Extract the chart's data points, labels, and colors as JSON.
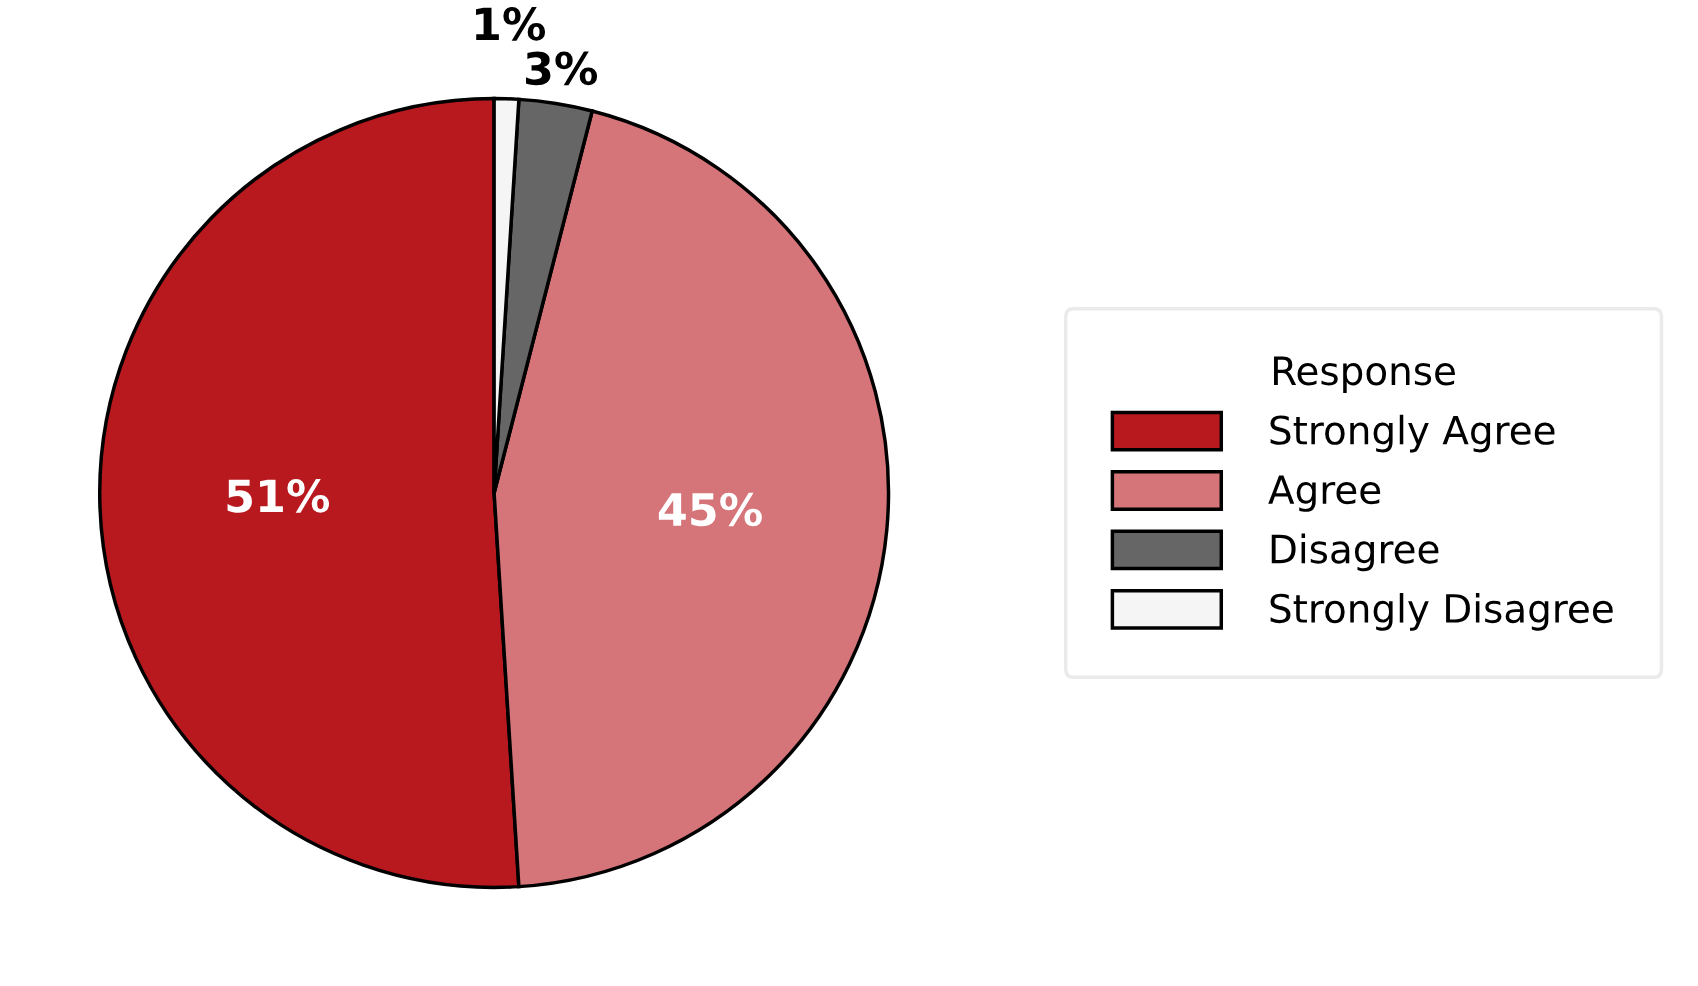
{
  "chart_data": {
    "type": "pie",
    "legend_title": "Response",
    "legend": "right",
    "categories": [
      "Strongly Agree",
      "Agree",
      "Disagree",
      "Strongly Disagree"
    ],
    "values": [
      51,
      45,
      3,
      1
    ],
    "value_labels": [
      "51%",
      "45%",
      "3%",
      "1%"
    ],
    "colors": [
      "#b8191f",
      "#d5757a",
      "#666666",
      "#f5f5f5"
    ]
  }
}
